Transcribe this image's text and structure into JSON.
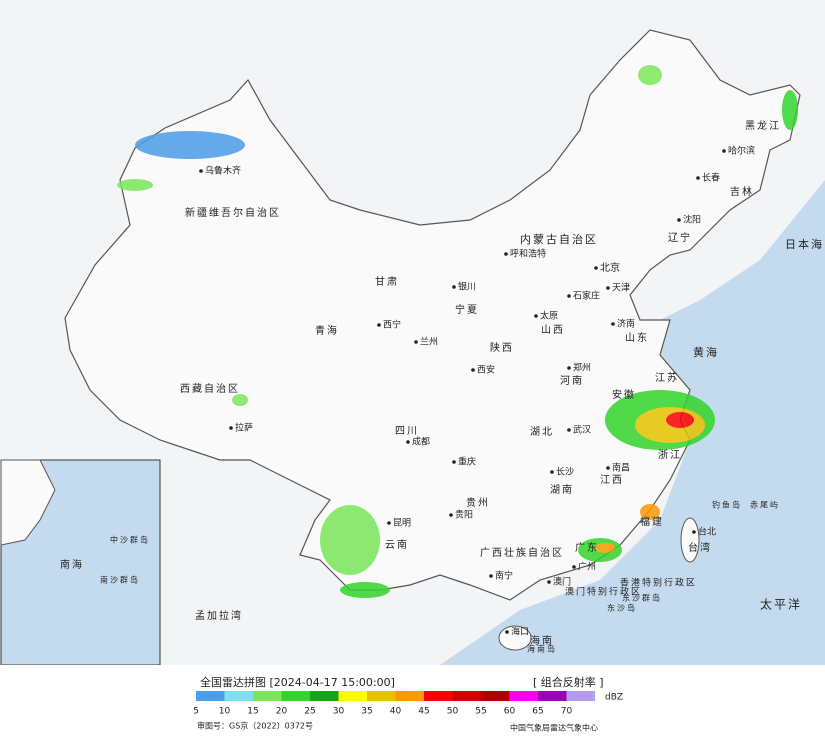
{
  "footer": {
    "title": "全国雷达拼图 [2024-04-17 15:00:00]",
    "product": "[ 组合反射率 ]",
    "unit": "dBZ",
    "approval": "审图号：GS京（2022）0372号",
    "source": "中国气象局雷达气象中心",
    "levels": [
      {
        "value": 5,
        "color": "#4a9de8"
      },
      {
        "value": 10,
        "color": "#7ee0ee"
      },
      {
        "value": 15,
        "color": "#7be65a"
      },
      {
        "value": 20,
        "color": "#33d42a"
      },
      {
        "value": 25,
        "color": "#16a516"
      },
      {
        "value": 30,
        "color": "#fcfc00"
      },
      {
        "value": 35,
        "color": "#e6c200"
      },
      {
        "value": 40,
        "color": "#fc9800"
      },
      {
        "value": 45,
        "color": "#fc0000"
      },
      {
        "value": 50,
        "color": "#d40000"
      },
      {
        "value": 55,
        "color": "#b00000"
      },
      {
        "value": 60,
        "color": "#fc00f0"
      },
      {
        "value": 65,
        "color": "#9a00b4"
      },
      {
        "value": 70,
        "color": "#b49cf0"
      }
    ]
  },
  "map_labels": [
    "乌鲁木齐",
    "新疆维吾尔自治区",
    "西藏自治区",
    "拉萨",
    "青海",
    "西宁",
    "甘肃",
    "内蒙古自治区",
    "黑龙江",
    "哈尔滨",
    "长春",
    "吉林",
    "沈阳",
    "辽宁",
    "呼和浩特",
    "北京",
    "天津",
    "石家庄",
    "太原",
    "山西",
    "济南",
    "山东",
    "郑州",
    "河南",
    "西安",
    "陕西",
    "兰州",
    "银川",
    "宁夏",
    "成都",
    "四川",
    "重庆",
    "贵阳",
    "贵州",
    "昆明",
    "云南",
    "南宁",
    "广西壮族自治区",
    "长沙",
    "湖南",
    "武汉",
    "湖北",
    "南昌",
    "江西",
    "安徽",
    "江苏",
    "浙江",
    "福建",
    "广州",
    "广东",
    "台北",
    "台湾",
    "海口",
    "海南",
    "澳门",
    "香港特别行政区",
    "澳门特别行政区",
    "东沙群岛",
    "东沙岛",
    "钓鱼岛",
    "赤尾屿",
    "日本海",
    "黄海",
    "太平洋",
    "孟加拉湾",
    "南海",
    "中沙群岛",
    "南沙群岛",
    "海南岛"
  ]
}
